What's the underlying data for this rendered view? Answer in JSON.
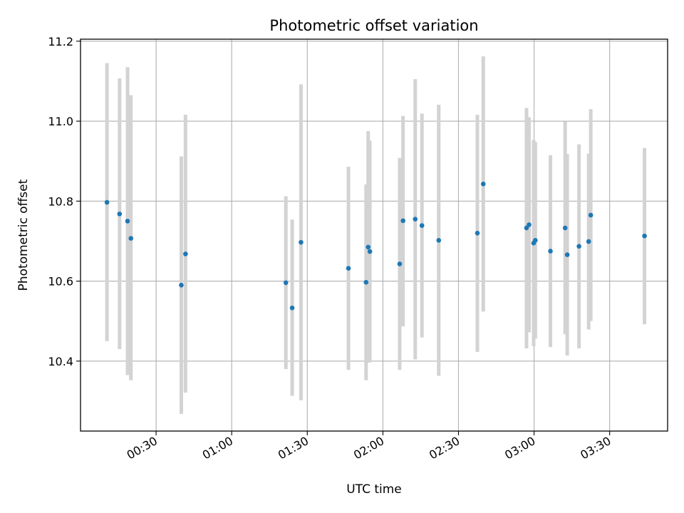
{
  "chart_data": {
    "type": "scatter",
    "title": "Photometric offset variation",
    "xlabel": "UTC time",
    "ylabel": "Photometric offset",
    "xlim": [
      "00:00",
      "03:53"
    ],
    "ylim": [
      10.225,
      11.205
    ],
    "x_ticks": [
      "00:30",
      "01:00",
      "01:30",
      "02:00",
      "02:30",
      "03:00",
      "03:30"
    ],
    "y_ticks": [
      "10.4",
      "10.6",
      "10.8",
      "11.0",
      "11.2"
    ],
    "grid": true,
    "colors": {
      "points": "#1f77b4",
      "errorbars": "#d3d3d3",
      "grid": "#b0b0b0"
    },
    "points": [
      {
        "x": "00:10:30",
        "y": 10.797,
        "low": 10.45,
        "high": 11.145
      },
      {
        "x": "00:15:30",
        "y": 10.768,
        "low": 10.43,
        "high": 11.107
      },
      {
        "x": "00:18:40",
        "y": 10.75,
        "low": 10.365,
        "high": 11.135
      },
      {
        "x": "00:20:00",
        "y": 10.707,
        "low": 10.352,
        "high": 11.065
      },
      {
        "x": "00:40:00",
        "y": 10.59,
        "low": 10.268,
        "high": 10.912
      },
      {
        "x": "00:41:40",
        "y": 10.668,
        "low": 10.321,
        "high": 11.016
      },
      {
        "x": "01:21:30",
        "y": 10.596,
        "low": 10.38,
        "high": 10.812
      },
      {
        "x": "01:24:00",
        "y": 10.533,
        "low": 10.313,
        "high": 10.754
      },
      {
        "x": "01:27:30",
        "y": 10.697,
        "low": 10.302,
        "high": 11.092
      },
      {
        "x": "01:46:20",
        "y": 10.632,
        "low": 10.378,
        "high": 10.886
      },
      {
        "x": "01:53:20",
        "y": 10.597,
        "low": 10.352,
        "high": 10.842
      },
      {
        "x": "01:54:10",
        "y": 10.685,
        "low": 10.396,
        "high": 10.975
      },
      {
        "x": "01:54:50",
        "y": 10.674,
        "low": 10.397,
        "high": 10.951
      },
      {
        "x": "02:06:40",
        "y": 10.643,
        "low": 10.378,
        "high": 10.908
      },
      {
        "x": "02:08:00",
        "y": 10.751,
        "low": 10.487,
        "high": 11.013
      },
      {
        "x": "02:12:50",
        "y": 10.755,
        "low": 10.404,
        "high": 11.105
      },
      {
        "x": "02:15:30",
        "y": 10.739,
        "low": 10.459,
        "high": 11.019
      },
      {
        "x": "02:22:10",
        "y": 10.702,
        "low": 10.363,
        "high": 11.041
      },
      {
        "x": "02:37:30",
        "y": 10.72,
        "low": 10.423,
        "high": 11.016
      },
      {
        "x": "02:39:50",
        "y": 10.843,
        "low": 10.524,
        "high": 11.162
      },
      {
        "x": "02:57:00",
        "y": 10.733,
        "low": 10.432,
        "high": 11.033
      },
      {
        "x": "02:58:00",
        "y": 10.741,
        "low": 10.472,
        "high": 11.01
      },
      {
        "x": "02:59:50",
        "y": 10.695,
        "low": 10.437,
        "high": 10.953
      },
      {
        "x": "03:00:30",
        "y": 10.702,
        "low": 10.456,
        "high": 10.948
      },
      {
        "x": "03:06:30",
        "y": 10.675,
        "low": 10.435,
        "high": 10.915
      },
      {
        "x": "03:12:20",
        "y": 10.733,
        "low": 10.467,
        "high": 10.999
      },
      {
        "x": "03:13:10",
        "y": 10.666,
        "low": 10.414,
        "high": 10.918
      },
      {
        "x": "03:17:50",
        "y": 10.687,
        "low": 10.432,
        "high": 10.942
      },
      {
        "x": "03:21:40",
        "y": 10.699,
        "low": 10.479,
        "high": 10.919
      },
      {
        "x": "03:22:30",
        "y": 10.765,
        "low": 10.5,
        "high": 11.03
      },
      {
        "x": "03:43:50",
        "y": 10.713,
        "low": 10.492,
        "high": 10.933
      }
    ]
  }
}
